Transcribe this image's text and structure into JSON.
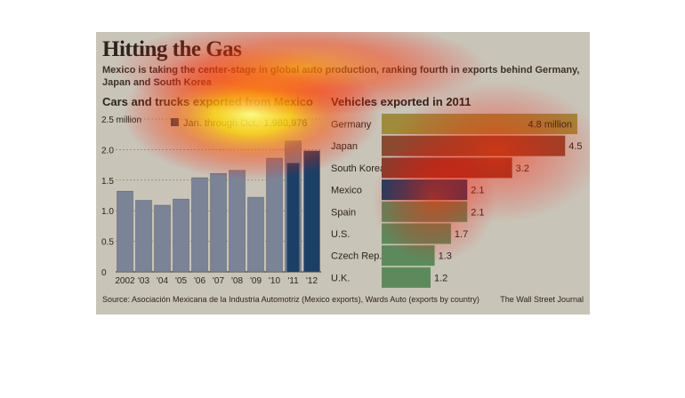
{
  "headline": "Hitting the Gas",
  "subhead": "Mexico is taking the center-stage in global auto production, ranking fourth in exports behind Germany, Japan and South Korea",
  "source": "Source:  Asociación Mexicana de la Industria Automotriz (Mexico exports), Wards Auto (exports by country)",
  "credit": "The Wall Street Journal",
  "colors": {
    "bar_gray": "#7b8496",
    "bar_mexico": "#1c3f66",
    "bar_green": "#5d8a5c",
    "bar_germany": "#a08a3c",
    "bar_japan": "#8a4a30",
    "bar_korea": "#8c3c2c"
  },
  "chart_data": [
    {
      "type": "bar",
      "title": "Cars and trucks exported from Mexico",
      "categories": [
        "2002",
        "'03",
        "'04",
        "'05",
        "'06",
        "'07",
        "'08",
        "'09",
        "'10",
        "'11",
        "'12"
      ],
      "values": [
        1.32,
        1.17,
        1.09,
        1.19,
        1.54,
        1.61,
        1.66,
        1.22,
        1.86,
        2.14,
        1.98
      ],
      "overlay": {
        "category": "'11",
        "value": 1.78,
        "label": "Jan. through Oct.: 1,980,976"
      },
      "yticks": [
        "0",
        "0.5",
        "1.0",
        "1.5",
        "2.0",
        "2.5 million"
      ],
      "ylim": [
        0,
        2.5
      ],
      "grid": true
    },
    {
      "type": "bar",
      "orientation": "horizontal",
      "title": "Vehicles exported in 2011",
      "categories": [
        "Germany",
        "Japan",
        "South Korea",
        "Mexico",
        "Spain",
        "U.S.",
        "Czech Rep.",
        "U.K."
      ],
      "values": [
        4.8,
        4.5,
        3.2,
        2.1,
        2.1,
        1.7,
        1.3,
        1.2
      ],
      "value_labels": [
        "4.8 million",
        "4.5",
        "3.2",
        "2.1",
        "2.1",
        "1.7",
        "1.3",
        "1.2"
      ]
    }
  ]
}
